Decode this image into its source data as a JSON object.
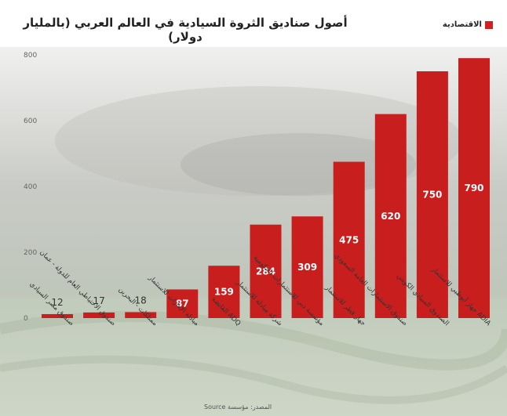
{
  "header": {
    "title": "أصول صناديق الثروة السيادية في العالم العربي (بالمليار دولار)",
    "logo_text": "الاقتصادية"
  },
  "colors": {
    "bar": "#c81e1e",
    "logo": "#d21f1f"
  },
  "source_text": "المصدر: مؤسسة Source",
  "chart_data": {
    "type": "bar",
    "title": "أصول صناديق الثروة السيادية في العالم العربي (بالمليار دولار)",
    "xlabel": "",
    "ylabel": "",
    "ylim": [
      0,
      800
    ],
    "yticks": [
      0,
      200,
      400,
      600,
      800
    ],
    "grid": false,
    "categories": [
      "صندوق مصر السيادي",
      "صندوق الاحتياطي العام للدولة - عمان",
      "ممتلكات - البحرين",
      "مبادلة الإمارات للاستثمار",
      "القابضة ADQ",
      "شركة مبادلة للاستثمار",
      "مؤسسة دبي للاستثمارات الحكومية",
      "جهاز قطر للاستثمار",
      "صندوق الاستثمارات العامة السعودي",
      "الصندوق السيادي الكويتي",
      "جهاز أبوظبي للاستثمار ADIA"
    ],
    "values": [
      12,
      17,
      18,
      87,
      159,
      284,
      309,
      475,
      620,
      750,
      790
    ]
  }
}
